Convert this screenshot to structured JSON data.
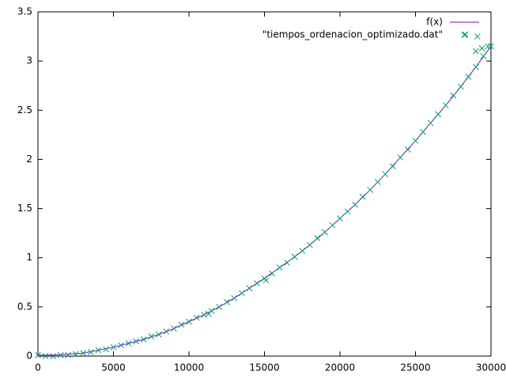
{
  "chart_data": {
    "type": "line",
    "xlim": [
      0,
      30000
    ],
    "xticks": [
      0,
      5000,
      10000,
      15000,
      20000,
      25000,
      30000
    ],
    "ylim": [
      0,
      3.5
    ],
    "yticks": [
      0,
      0.5,
      1,
      1.5,
      2,
      2.5,
      3,
      3.5
    ],
    "legend": "top-right",
    "series": [
      {
        "name": "f(x)",
        "type": "line",
        "color": "#9400d3",
        "x": [
          0,
          1000,
          2000,
          3000,
          4000,
          5000,
          6000,
          7000,
          8000,
          9000,
          10000,
          11000,
          12000,
          13000,
          14000,
          15000,
          16000,
          17000,
          18000,
          19000,
          20000,
          21000,
          22000,
          23000,
          24000,
          25000,
          26000,
          27000,
          28000,
          29000,
          30000
        ],
        "values": [
          0.01,
          0.01,
          0.02,
          0.03,
          0.06,
          0.09,
          0.13,
          0.17,
          0.22,
          0.28,
          0.35,
          0.42,
          0.5,
          0.59,
          0.69,
          0.79,
          0.9,
          1.01,
          1.13,
          1.26,
          1.4,
          1.54,
          1.69,
          1.85,
          2.02,
          2.19,
          2.37,
          2.55,
          2.74,
          2.94,
          3.15
        ]
      },
      {
        "name": "\"tiempos_ordenacion_optimizado.dat\"",
        "type": "scatter",
        "color": "#009e73",
        "x": [
          0,
          500,
          1000,
          1500,
          2000,
          2500,
          3000,
          3500,
          4000,
          4500,
          5000,
          5500,
          6000,
          6500,
          7000,
          7500,
          8000,
          8500,
          9000,
          9500,
          10000,
          10500,
          11000,
          11500,
          12000,
          12500,
          13000,
          13500,
          14000,
          14500,
          15000,
          15500,
          16000,
          16500,
          17000,
          17500,
          18000,
          18500,
          19000,
          19500,
          20000,
          20500,
          21000,
          21500,
          22000,
          22500,
          23000,
          23500,
          24000,
          24500,
          25000,
          25500,
          26000,
          26500,
          27000,
          27500,
          28000,
          28500,
          29000,
          29500,
          30000,
          11300,
          15100,
          28300,
          29100,
          29000,
          29400,
          29800
        ],
        "values": [
          0.01,
          0,
          0,
          0.01,
          0.01,
          0.02,
          0.03,
          0.04,
          0.06,
          0.07,
          0.09,
          0.11,
          0.13,
          0.15,
          0.17,
          0.2,
          0.22,
          0.25,
          0.28,
          0.32,
          0.35,
          0.39,
          0.42,
          0.46,
          0.5,
          0.55,
          0.59,
          0.64,
          0.69,
          0.74,
          0.79,
          0.84,
          0.9,
          0.95,
          1.01,
          1.07,
          1.13,
          1.2,
          1.26,
          1.33,
          1.4,
          1.47,
          1.54,
          1.62,
          1.69,
          1.77,
          1.85,
          1.93,
          2.02,
          2.1,
          2.19,
          2.28,
          2.37,
          2.46,
          2.55,
          2.65,
          2.74,
          2.84,
          2.94,
          3.05,
          3.15,
          0.43,
          0.77,
          3.27,
          3.25,
          3.1,
          3.13,
          3.15
        ]
      }
    ]
  }
}
